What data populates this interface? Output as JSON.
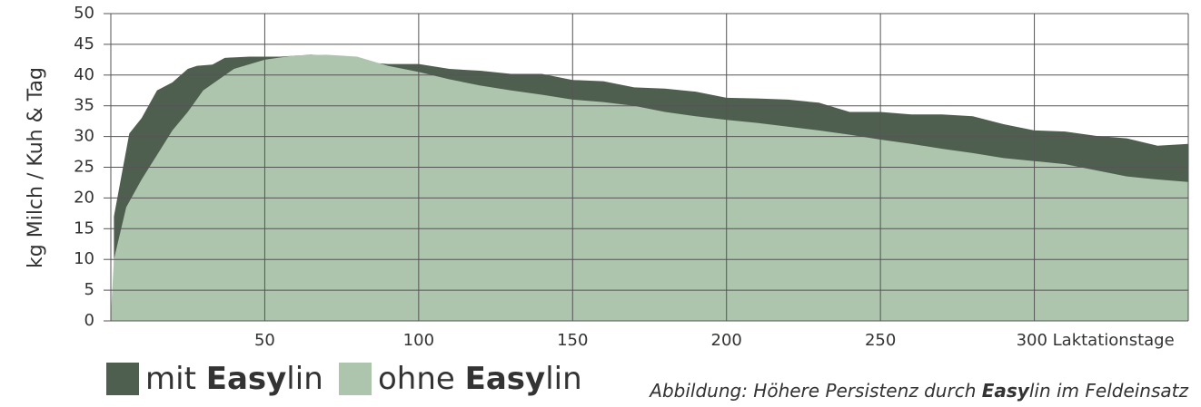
{
  "chart_data": {
    "type": "area",
    "ylabel": "kg Milch / Kuh & Tag",
    "emphasis": "Easy",
    "annotation": "Abbildung: Höhere Persistenz durch Easylin im Feldeinsatz",
    "xlim": [
      0,
      350
    ],
    "ylim": [
      0,
      50
    ],
    "xticks": [
      50,
      100,
      150,
      200,
      250,
      {
        "value": 300,
        "label": "300 Laktationstage"
      }
    ],
    "yticks": [
      0,
      5,
      10,
      15,
      20,
      25,
      30,
      35,
      40,
      45,
      50
    ],
    "grid": true,
    "series": [
      {
        "name": "mit Easylin",
        "color": "#4f5f4f",
        "x": [
          1,
          6,
          10,
          15,
          20,
          25,
          28,
          33,
          37,
          45,
          55,
          65,
          75,
          80,
          90,
          100,
          110,
          120,
          130,
          140,
          150,
          160,
          170,
          180,
          190,
          200,
          210,
          220,
          230,
          240,
          250,
          260,
          270,
          280,
          290,
          300,
          310,
          320,
          330,
          340,
          350
        ],
        "values": [
          17,
          30.5,
          33,
          37.5,
          38.8,
          41,
          41.5,
          41.7,
          42.8,
          43,
          43,
          43.3,
          43,
          42.2,
          41.8,
          41.8,
          41,
          40.7,
          40.2,
          40.2,
          39.2,
          39,
          38,
          37.8,
          37.3,
          36.3,
          36.2,
          36,
          35.5,
          34,
          34,
          33.6,
          33.6,
          33.3,
          32,
          31,
          30.8,
          30.1,
          29.7,
          28.5,
          28.8
        ]
      },
      {
        "name": "ohne Easylin",
        "color": "#adc5ad",
        "x": [
          0,
          1,
          5,
          10,
          15,
          20,
          25,
          30,
          40,
          50,
          60,
          70,
          80,
          90,
          100,
          110,
          120,
          130,
          140,
          150,
          160,
          170,
          180,
          190,
          200,
          210,
          220,
          230,
          240,
          250,
          260,
          270,
          280,
          290,
          300,
          310,
          320,
          330,
          340,
          350
        ],
        "values": [
          1,
          10,
          18.5,
          23,
          27,
          31,
          34,
          37.5,
          41,
          42.5,
          43.2,
          43.3,
          43,
          41.5,
          40.5,
          39.3,
          38.3,
          37.5,
          36.8,
          36,
          35.6,
          35,
          34,
          33.3,
          32.7,
          32.2,
          31.6,
          31,
          30.3,
          29.5,
          28.8,
          28,
          27.3,
          26.5,
          26,
          25.5,
          24.5,
          23.5,
          23,
          22.6
        ]
      }
    ]
  }
}
